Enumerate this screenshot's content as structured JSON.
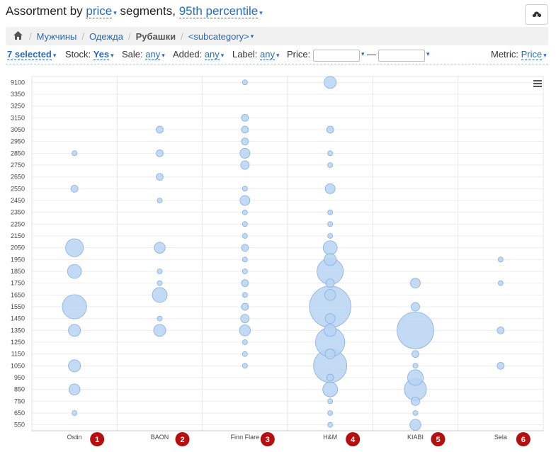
{
  "header": {
    "prefix": "Assortment by",
    "metric": "price",
    "middle": "segments,",
    "percentile": "95th percentile"
  },
  "breadcrumb": {
    "items": [
      "Мужчины",
      "Одежда",
      "Рубашки",
      "<subcategory>"
    ]
  },
  "filters": {
    "selected": "7 selected",
    "stock_label": "Stock:",
    "stock_value": "Yes",
    "sale_label": "Sale:",
    "sale_value": "any",
    "added_label": "Added:",
    "added_value": "any",
    "label_label": "Label:",
    "label_value": "any",
    "price_label": "Price:",
    "price_dash": "—",
    "metric_label": "Metric:",
    "metric_value": "Price"
  },
  "colors": {
    "bubble_fill": "#b9d3f3",
    "bubble_stroke": "#86aee0",
    "badge": "#b50f0f",
    "link": "#2a6ab7"
  },
  "chart_data": {
    "type": "bubble",
    "title": "",
    "categories": [
      "Ostin",
      "BAON",
      "Finn Flare",
      "H&M",
      "KIABI",
      "Sela"
    ],
    "category_badges": [
      "1",
      "2",
      "3",
      "4",
      "5",
      "6"
    ],
    "y_ticks": [
      "550",
      "650",
      "750",
      "850",
      "950",
      "1050",
      "1150",
      "1250",
      "1350",
      "1450",
      "1550",
      "1650",
      "1750",
      "1850",
      "1950",
      "2050",
      "2150",
      "2250",
      "2350",
      "2450",
      "2550",
      "2650",
      "2750",
      "2850",
      "2950",
      "3050",
      "3150",
      "3250",
      "3350",
      "9100"
    ],
    "points": [
      {
        "brand": "Ostin",
        "y": "650",
        "size": 1
      },
      {
        "brand": "Ostin",
        "y": "850",
        "size": 5
      },
      {
        "brand": "Ostin",
        "y": "1050",
        "size": 6
      },
      {
        "brand": "Ostin",
        "y": "1350",
        "size": 6
      },
      {
        "brand": "Ostin",
        "y": "1550",
        "size": 24
      },
      {
        "brand": "Ostin",
        "y": "1850",
        "size": 8
      },
      {
        "brand": "Ostin",
        "y": "2050",
        "size": 13
      },
      {
        "brand": "Ostin",
        "y": "2550",
        "size": 2
      },
      {
        "brand": "Ostin",
        "y": "2850",
        "size": 1
      },
      {
        "brand": "BAON",
        "y": "1350",
        "size": 6
      },
      {
        "brand": "BAON",
        "y": "1450",
        "size": 1
      },
      {
        "brand": "BAON",
        "y": "1650",
        "size": 9
      },
      {
        "brand": "BAON",
        "y": "1750",
        "size": 1
      },
      {
        "brand": "BAON",
        "y": "1850",
        "size": 1
      },
      {
        "brand": "BAON",
        "y": "2050",
        "size": 5
      },
      {
        "brand": "BAON",
        "y": "2450",
        "size": 1
      },
      {
        "brand": "BAON",
        "y": "2650",
        "size": 2
      },
      {
        "brand": "BAON",
        "y": "2850",
        "size": 2
      },
      {
        "brand": "BAON",
        "y": "3050",
        "size": 2
      },
      {
        "brand": "Finn Flare",
        "y": "1050",
        "size": 1
      },
      {
        "brand": "Finn Flare",
        "y": "1150",
        "size": 1
      },
      {
        "brand": "Finn Flare",
        "y": "1250",
        "size": 1
      },
      {
        "brand": "Finn Flare",
        "y": "1350",
        "size": 5
      },
      {
        "brand": "Finn Flare",
        "y": "1450",
        "size": 3
      },
      {
        "brand": "Finn Flare",
        "y": "1550",
        "size": 2
      },
      {
        "brand": "Finn Flare",
        "y": "1650",
        "size": 1
      },
      {
        "brand": "Finn Flare",
        "y": "1750",
        "size": 2
      },
      {
        "brand": "Finn Flare",
        "y": "1850",
        "size": 1
      },
      {
        "brand": "Finn Flare",
        "y": "1950",
        "size": 1
      },
      {
        "brand": "Finn Flare",
        "y": "2050",
        "size": 2
      },
      {
        "brand": "Finn Flare",
        "y": "2150",
        "size": 1
      },
      {
        "brand": "Finn Flare",
        "y": "2250",
        "size": 1
      },
      {
        "brand": "Finn Flare",
        "y": "2350",
        "size": 1
      },
      {
        "brand": "Finn Flare",
        "y": "2450",
        "size": 4
      },
      {
        "brand": "Finn Flare",
        "y": "2550",
        "size": 1
      },
      {
        "brand": "Finn Flare",
        "y": "2750",
        "size": 3
      },
      {
        "brand": "Finn Flare",
        "y": "2850",
        "size": 4
      },
      {
        "brand": "Finn Flare",
        "y": "2950",
        "size": 2
      },
      {
        "brand": "Finn Flare",
        "y": "3050",
        "size": 2
      },
      {
        "brand": "Finn Flare",
        "y": "3150",
        "size": 2
      },
      {
        "brand": "Finn Flare",
        "y": "9100",
        "size": 1
      },
      {
        "brand": "H&M",
        "y": "550",
        "size": 1
      },
      {
        "brand": "H&M",
        "y": "650",
        "size": 1
      },
      {
        "brand": "H&M",
        "y": "750",
        "size": 1
      },
      {
        "brand": "H&M",
        "y": "850",
        "size": 9
      },
      {
        "brand": "H&M",
        "y": "950",
        "size": 2
      },
      {
        "brand": "H&M",
        "y": "1050",
        "size": 45
      },
      {
        "brand": "H&M",
        "y": "1150",
        "size": 4
      },
      {
        "brand": "H&M",
        "y": "1250",
        "size": 35
      },
      {
        "brand": "H&M",
        "y": "1350",
        "size": 6
      },
      {
        "brand": "H&M",
        "y": "1450",
        "size": 4
      },
      {
        "brand": "H&M",
        "y": "1550",
        "size": 70
      },
      {
        "brand": "H&M",
        "y": "1650",
        "size": 5
      },
      {
        "brand": "H&M",
        "y": "1750",
        "size": 3
      },
      {
        "brand": "H&M",
        "y": "1850",
        "size": 28
      },
      {
        "brand": "H&M",
        "y": "1950",
        "size": 6
      },
      {
        "brand": "H&M",
        "y": "2050",
        "size": 8
      },
      {
        "brand": "H&M",
        "y": "2150",
        "size": 1
      },
      {
        "brand": "H&M",
        "y": "2250",
        "size": 1
      },
      {
        "brand": "H&M",
        "y": "2350",
        "size": 1
      },
      {
        "brand": "H&M",
        "y": "2550",
        "size": 4
      },
      {
        "brand": "H&M",
        "y": "2750",
        "size": 1
      },
      {
        "brand": "H&M",
        "y": "2850",
        "size": 1
      },
      {
        "brand": "H&M",
        "y": "3050",
        "size": 2
      },
      {
        "brand": "H&M",
        "y": "9100",
        "size": 6
      },
      {
        "brand": "KIABI",
        "y": "550",
        "size": 5
      },
      {
        "brand": "KIABI",
        "y": "650",
        "size": 1
      },
      {
        "brand": "KIABI",
        "y": "750",
        "size": 3
      },
      {
        "brand": "KIABI",
        "y": "850",
        "size": 20
      },
      {
        "brand": "KIABI",
        "y": "950",
        "size": 10
      },
      {
        "brand": "KIABI",
        "y": "1050",
        "size": 1
      },
      {
        "brand": "KIABI",
        "y": "1150",
        "size": 2
      },
      {
        "brand": "KIABI",
        "y": "1350",
        "size": 55
      },
      {
        "brand": "KIABI",
        "y": "1550",
        "size": 3
      },
      {
        "brand": "KIABI",
        "y": "1750",
        "size": 4
      },
      {
        "brand": "Sela",
        "y": "1050",
        "size": 2
      },
      {
        "brand": "Sela",
        "y": "1350",
        "size": 2
      },
      {
        "brand": "Sela",
        "y": "1750",
        "size": 1
      },
      {
        "brand": "Sela",
        "y": "1950",
        "size": 1
      }
    ]
  }
}
